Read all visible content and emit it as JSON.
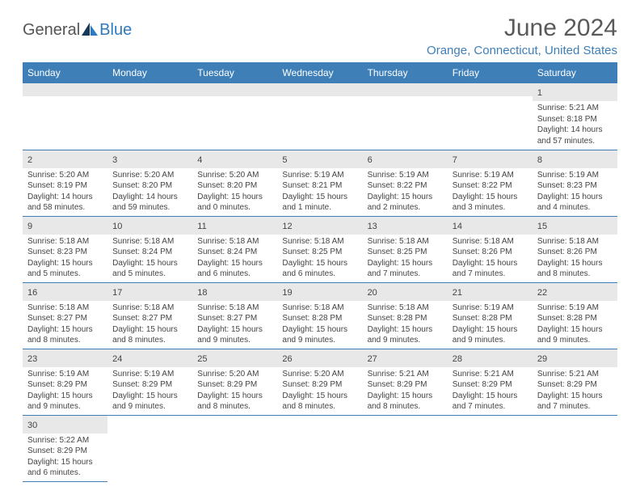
{
  "logo": {
    "text_general": "General",
    "text_blue": "Blue",
    "general_color": "#555555",
    "blue_color": "#2f7abf"
  },
  "title": "June 2024",
  "location": "Orange, Connecticut, United States",
  "header_bg": "#3e7fb8",
  "header_fg": "#ffffff",
  "daynum_bg": "#e8e8e8",
  "border_color": "#3e7fb8",
  "text_color": "#444444",
  "weekdays": [
    "Sunday",
    "Monday",
    "Tuesday",
    "Wednesday",
    "Thursday",
    "Friday",
    "Saturday"
  ],
  "weeks": [
    [
      null,
      null,
      null,
      null,
      null,
      null,
      {
        "n": "1",
        "sunrise": "5:21 AM",
        "sunset": "8:18 PM",
        "daylight": "14 hours and 57 minutes."
      }
    ],
    [
      {
        "n": "2",
        "sunrise": "5:20 AM",
        "sunset": "8:19 PM",
        "daylight": "14 hours and 58 minutes."
      },
      {
        "n": "3",
        "sunrise": "5:20 AM",
        "sunset": "8:20 PM",
        "daylight": "14 hours and 59 minutes."
      },
      {
        "n": "4",
        "sunrise": "5:20 AM",
        "sunset": "8:20 PM",
        "daylight": "15 hours and 0 minutes."
      },
      {
        "n": "5",
        "sunrise": "5:19 AM",
        "sunset": "8:21 PM",
        "daylight": "15 hours and 1 minute."
      },
      {
        "n": "6",
        "sunrise": "5:19 AM",
        "sunset": "8:22 PM",
        "daylight": "15 hours and 2 minutes."
      },
      {
        "n": "7",
        "sunrise": "5:19 AM",
        "sunset": "8:22 PM",
        "daylight": "15 hours and 3 minutes."
      },
      {
        "n": "8",
        "sunrise": "5:19 AM",
        "sunset": "8:23 PM",
        "daylight": "15 hours and 4 minutes."
      }
    ],
    [
      {
        "n": "9",
        "sunrise": "5:18 AM",
        "sunset": "8:23 PM",
        "daylight": "15 hours and 5 minutes."
      },
      {
        "n": "10",
        "sunrise": "5:18 AM",
        "sunset": "8:24 PM",
        "daylight": "15 hours and 5 minutes."
      },
      {
        "n": "11",
        "sunrise": "5:18 AM",
        "sunset": "8:24 PM",
        "daylight": "15 hours and 6 minutes."
      },
      {
        "n": "12",
        "sunrise": "5:18 AM",
        "sunset": "8:25 PM",
        "daylight": "15 hours and 6 minutes."
      },
      {
        "n": "13",
        "sunrise": "5:18 AM",
        "sunset": "8:25 PM",
        "daylight": "15 hours and 7 minutes."
      },
      {
        "n": "14",
        "sunrise": "5:18 AM",
        "sunset": "8:26 PM",
        "daylight": "15 hours and 7 minutes."
      },
      {
        "n": "15",
        "sunrise": "5:18 AM",
        "sunset": "8:26 PM",
        "daylight": "15 hours and 8 minutes."
      }
    ],
    [
      {
        "n": "16",
        "sunrise": "5:18 AM",
        "sunset": "8:27 PM",
        "daylight": "15 hours and 8 minutes."
      },
      {
        "n": "17",
        "sunrise": "5:18 AM",
        "sunset": "8:27 PM",
        "daylight": "15 hours and 8 minutes."
      },
      {
        "n": "18",
        "sunrise": "5:18 AM",
        "sunset": "8:27 PM",
        "daylight": "15 hours and 9 minutes."
      },
      {
        "n": "19",
        "sunrise": "5:18 AM",
        "sunset": "8:28 PM",
        "daylight": "15 hours and 9 minutes."
      },
      {
        "n": "20",
        "sunrise": "5:18 AM",
        "sunset": "8:28 PM",
        "daylight": "15 hours and 9 minutes."
      },
      {
        "n": "21",
        "sunrise": "5:19 AM",
        "sunset": "8:28 PM",
        "daylight": "15 hours and 9 minutes."
      },
      {
        "n": "22",
        "sunrise": "5:19 AM",
        "sunset": "8:28 PM",
        "daylight": "15 hours and 9 minutes."
      }
    ],
    [
      {
        "n": "23",
        "sunrise": "5:19 AM",
        "sunset": "8:29 PM",
        "daylight": "15 hours and 9 minutes."
      },
      {
        "n": "24",
        "sunrise": "5:19 AM",
        "sunset": "8:29 PM",
        "daylight": "15 hours and 9 minutes."
      },
      {
        "n": "25",
        "sunrise": "5:20 AM",
        "sunset": "8:29 PM",
        "daylight": "15 hours and 8 minutes."
      },
      {
        "n": "26",
        "sunrise": "5:20 AM",
        "sunset": "8:29 PM",
        "daylight": "15 hours and 8 minutes."
      },
      {
        "n": "27",
        "sunrise": "5:21 AM",
        "sunset": "8:29 PM",
        "daylight": "15 hours and 8 minutes."
      },
      {
        "n": "28",
        "sunrise": "5:21 AM",
        "sunset": "8:29 PM",
        "daylight": "15 hours and 7 minutes."
      },
      {
        "n": "29",
        "sunrise": "5:21 AM",
        "sunset": "8:29 PM",
        "daylight": "15 hours and 7 minutes."
      }
    ],
    [
      {
        "n": "30",
        "sunrise": "5:22 AM",
        "sunset": "8:29 PM",
        "daylight": "15 hours and 6 minutes."
      },
      null,
      null,
      null,
      null,
      null,
      null
    ]
  ],
  "labels": {
    "sunrise": "Sunrise: ",
    "sunset": "Sunset: ",
    "daylight": "Daylight: "
  }
}
